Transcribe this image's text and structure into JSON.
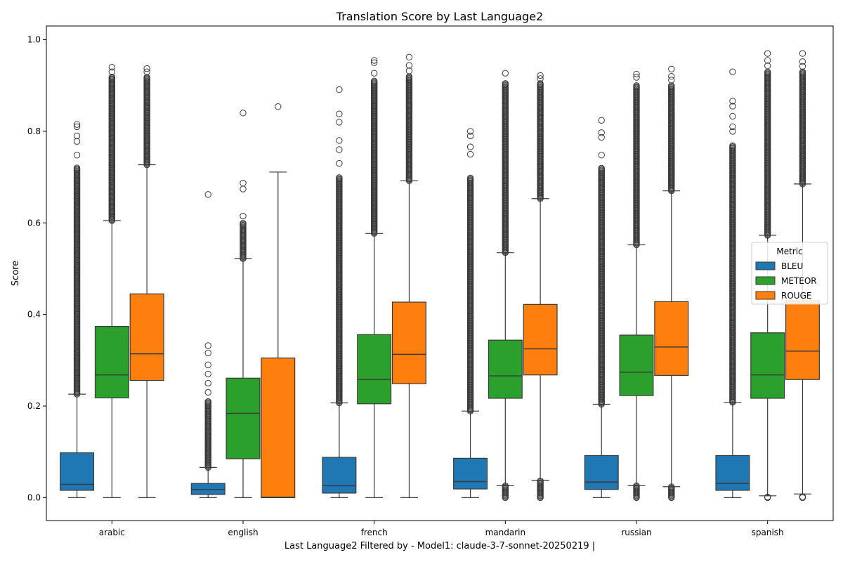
{
  "chart_data": {
    "type": "boxplot",
    "title": "Translation Score by Last Language2",
    "xlabel": "Last Language2 Filtered by - Model1: claude-3-7-sonnet-20250219 |",
    "ylabel": "Score",
    "ylim": [
      -0.05,
      1.03
    ],
    "yticks": [
      0.0,
      0.2,
      0.4,
      0.6,
      0.8,
      1.0
    ],
    "ytick_labels": [
      "0.0",
      "0.2",
      "0.4",
      "0.6",
      "0.8",
      "1.0"
    ],
    "grid": false,
    "categories": [
      "arabic",
      "english",
      "french",
      "mandarin",
      "russian",
      "spanish"
    ],
    "legend": {
      "title": "Metric",
      "position": "center-right",
      "entries": [
        "BLEU",
        "METEOR",
        "ROUGE"
      ]
    },
    "series": [
      {
        "name": "BLEU",
        "color": "#1f77b4",
        "boxes": [
          {
            "whislo": 0.0,
            "q1": 0.016,
            "med": 0.029,
            "q3": 0.098,
            "whishi": 0.226,
            "flier_range": [
              0.226,
              0.72
            ],
            "flier_extra": [
              0.748,
              0.778,
              0.79,
              0.81,
              0.815
            ]
          },
          {
            "whislo": 0.0,
            "q1": 0.007,
            "med": 0.018,
            "q3": 0.031,
            "whishi": 0.066,
            "flier_range": [
              0.066,
              0.21
            ],
            "flier_extra": [
              0.23,
              0.25,
              0.27,
              0.29,
              0.316,
              0.332,
              0.662
            ]
          },
          {
            "whislo": 0.0,
            "q1": 0.01,
            "med": 0.026,
            "q3": 0.088,
            "whishi": 0.207,
            "flier_range": [
              0.207,
              0.7
            ],
            "flier_extra": [
              0.73,
              0.76,
              0.78,
              0.82,
              0.838,
              0.891
            ]
          },
          {
            "whislo": 0.0,
            "q1": 0.019,
            "med": 0.035,
            "q3": 0.086,
            "whishi": 0.189,
            "flier_range": [
              0.189,
              0.7
            ],
            "flier_extra": [
              0.75,
              0.766,
              0.79,
              0.8
            ]
          },
          {
            "whislo": 0.0,
            "q1": 0.018,
            "med": 0.034,
            "q3": 0.092,
            "whishi": 0.204,
            "flier_range": [
              0.204,
              0.72
            ],
            "flier_extra": [
              0.748,
              0.787,
              0.797,
              0.824
            ]
          },
          {
            "whislo": 0.0,
            "q1": 0.016,
            "med": 0.031,
            "q3": 0.092,
            "whishi": 0.208,
            "flier_range": [
              0.208,
              0.77
            ],
            "flier_extra": [
              0.8,
              0.81,
              0.833,
              0.855,
              0.866,
              0.93
            ]
          }
        ]
      },
      {
        "name": "METEOR",
        "color": "#2ca02c",
        "boxes": [
          {
            "whislo": 0.0,
            "q1": 0.218,
            "med": 0.268,
            "q3": 0.374,
            "whishi": 0.605,
            "flier_range": [
              0.605,
              0.92
            ],
            "flier_extra": [
              0.93,
              0.94
            ]
          },
          {
            "whislo": 0.0,
            "q1": 0.085,
            "med": 0.184,
            "q3": 0.261,
            "whishi": 0.522,
            "flier_range": [
              0.522,
              0.6
            ],
            "flier_extra": [
              0.615,
              0.674,
              0.687,
              0.84
            ]
          },
          {
            "whislo": 0.0,
            "q1": 0.205,
            "med": 0.258,
            "q3": 0.356,
            "whishi": 0.577,
            "flier_range": [
              0.577,
              0.91
            ],
            "flier_extra": [
              0.927,
              0.95,
              0.955
            ]
          },
          {
            "whislo": 0.026,
            "q1": 0.217,
            "med": 0.266,
            "q3": 0.344,
            "whishi": 0.535,
            "flier_range": [
              0.535,
              0.905
            ],
            "flier_extra": [
              0.927
            ],
            "flier_low_range": [
              0.0,
              0.026
            ]
          },
          {
            "whislo": 0.026,
            "q1": 0.223,
            "med": 0.274,
            "q3": 0.355,
            "whishi": 0.552,
            "flier_range": [
              0.552,
              0.9
            ],
            "flier_extra": [
              0.918,
              0.925
            ],
            "flier_low_range": [
              0.0,
              0.026
            ]
          },
          {
            "whislo": 0.004,
            "q1": 0.217,
            "med": 0.268,
            "q3": 0.36,
            "whishi": 0.573,
            "flier_range": [
              0.573,
              0.93
            ],
            "flier_extra": [
              0.943,
              0.955,
              0.97
            ],
            "flier_low": [
              0.0,
              0.0015
            ]
          }
        ]
      },
      {
        "name": "ROUGE",
        "color": "#ff7f0e",
        "boxes": [
          {
            "whislo": 0.0,
            "q1": 0.256,
            "med": 0.314,
            "q3": 0.445,
            "whishi": 0.727,
            "flier_range": [
              0.727,
              0.92
            ],
            "flier_extra": [
              0.93,
              0.937
            ]
          },
          {
            "whislo": 0.0,
            "q1": 0.0,
            "med": 0.001,
            "q3": 0.305,
            "whishi": 0.711,
            "flier_range": null,
            "flier_extra": [
              0.854
            ]
          },
          {
            "whislo": 0.0,
            "q1": 0.249,
            "med": 0.313,
            "q3": 0.427,
            "whishi": 0.692,
            "flier_range": [
              0.692,
              0.92
            ],
            "flier_extra": [
              0.932,
              0.944,
              0.962
            ]
          },
          {
            "whislo": 0.038,
            "q1": 0.268,
            "med": 0.325,
            "q3": 0.422,
            "whishi": 0.653,
            "flier_range": [
              0.653,
              0.905
            ],
            "flier_extra": [
              0.915,
              0.922
            ],
            "flier_low_range": [
              0.0,
              0.038
            ]
          },
          {
            "whislo": 0.024,
            "q1": 0.267,
            "med": 0.329,
            "q3": 0.428,
            "whishi": 0.67,
            "flier_range": [
              0.67,
              0.9
            ],
            "flier_extra": [
              0.912,
              0.92,
              0.936
            ],
            "flier_low_range": [
              0.0,
              0.024
            ]
          },
          {
            "whislo": 0.008,
            "q1": 0.258,
            "med": 0.32,
            "q3": 0.43,
            "whishi": 0.685,
            "flier_range": [
              0.685,
              0.93
            ],
            "flier_extra": [
              0.942,
              0.952,
              0.97
            ],
            "flier_low": [
              0.0,
              0.002
            ]
          }
        ]
      }
    ]
  }
}
